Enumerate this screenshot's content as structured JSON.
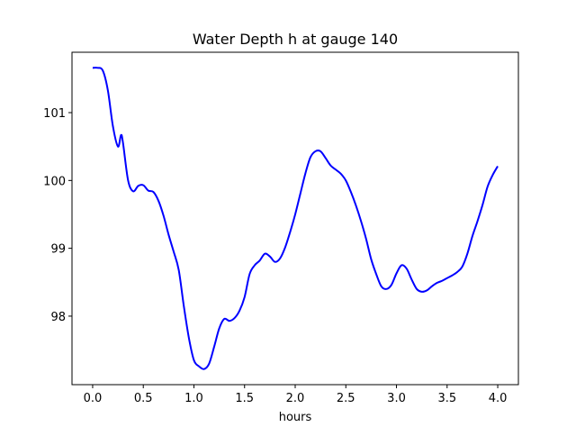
{
  "chart_data": {
    "type": "line",
    "title": "Water Depth h at gauge 140",
    "xlabel": "hours",
    "ylabel": "",
    "xlim": [
      -0.204,
      4.204
    ],
    "ylim": [
      96.99,
      101.89
    ],
    "xticks": [
      0.0,
      0.5,
      1.0,
      1.5,
      2.0,
      2.5,
      3.0,
      3.5,
      4.0
    ],
    "xtick_labels": [
      "0.0",
      "0.5",
      "1.0",
      "1.5",
      "2.0",
      "2.5",
      "3.0",
      "3.5",
      "4.0"
    ],
    "yticks": [
      98,
      99,
      100,
      101
    ],
    "ytick_labels": [
      "98",
      "99",
      "100",
      "101"
    ],
    "grid": false,
    "series": [
      {
        "name": "h",
        "color": "#0000ff",
        "x": [
          0.0,
          0.05,
          0.1,
          0.15,
          0.2,
          0.25,
          0.28,
          0.3,
          0.35,
          0.4,
          0.45,
          0.5,
          0.55,
          0.6,
          0.65,
          0.7,
          0.75,
          0.8,
          0.85,
          0.9,
          0.95,
          1.0,
          1.05,
          1.1,
          1.15,
          1.2,
          1.25,
          1.3,
          1.35,
          1.4,
          1.45,
          1.5,
          1.55,
          1.6,
          1.65,
          1.7,
          1.75,
          1.8,
          1.85,
          1.9,
          1.95,
          2.0,
          2.05,
          2.1,
          2.15,
          2.2,
          2.25,
          2.3,
          2.35,
          2.4,
          2.45,
          2.5,
          2.55,
          2.6,
          2.65,
          2.7,
          2.75,
          2.8,
          2.85,
          2.9,
          2.95,
          3.0,
          3.05,
          3.1,
          3.15,
          3.2,
          3.25,
          3.3,
          3.35,
          3.4,
          3.45,
          3.5,
          3.55,
          3.6,
          3.65,
          3.7,
          3.75,
          3.8,
          3.85,
          3.9,
          3.95,
          4.0
        ],
        "y": [
          101.66,
          101.66,
          101.62,
          101.33,
          100.8,
          100.5,
          100.67,
          100.55,
          100.0,
          99.84,
          99.92,
          99.93,
          99.85,
          99.83,
          99.7,
          99.48,
          99.2,
          98.95,
          98.68,
          98.15,
          97.68,
          97.35,
          97.26,
          97.22,
          97.3,
          97.55,
          97.82,
          97.96,
          97.93,
          97.97,
          98.08,
          98.28,
          98.62,
          98.75,
          98.82,
          98.92,
          98.88,
          98.8,
          98.85,
          99.01,
          99.24,
          99.5,
          99.8,
          100.1,
          100.34,
          100.43,
          100.43,
          100.33,
          100.22,
          100.16,
          100.1,
          100.0,
          99.83,
          99.63,
          99.4,
          99.14,
          98.84,
          98.62,
          98.44,
          98.4,
          98.46,
          98.63,
          98.75,
          98.7,
          98.54,
          98.4,
          98.36,
          98.38,
          98.44,
          98.49,
          98.52,
          98.56,
          98.6,
          98.65,
          98.73,
          98.92,
          99.18,
          99.4,
          99.64,
          99.91,
          100.08,
          100.21
        ]
      }
    ]
  }
}
